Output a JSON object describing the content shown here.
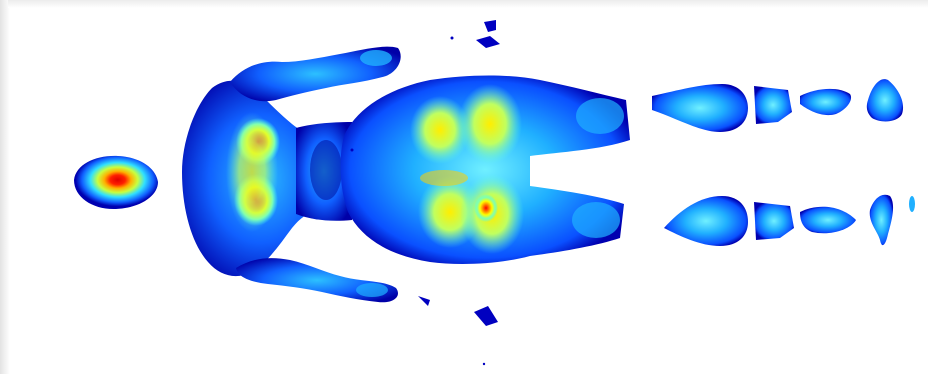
{
  "image": {
    "subject": "pressure-heatmap",
    "colormap": [
      "#00008f",
      "#0030ff",
      "#00a0ff",
      "#40ffff",
      "#c0ff40",
      "#ffff00",
      "#ff8000",
      "#ff0000"
    ],
    "background": "#ffffff"
  }
}
